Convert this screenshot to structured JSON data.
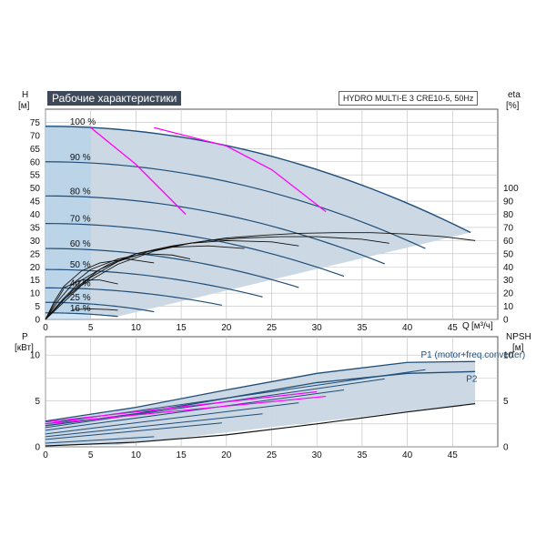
{
  "title": "Рабочие характеристики",
  "model": "HYDRO MULTI-E 3 CRE10-5, 50Hz",
  "colors": {
    "region": "#c9d7e3",
    "band": "#aecfe9",
    "curve": "#1f4e79",
    "efficiency": "#ff00ff",
    "system": "#111111",
    "grid": "#bfbfbf"
  },
  "chart_data": [
    {
      "type": "line",
      "name": "performance",
      "ylabel_left": "H",
      "yunit_left": "[м]",
      "ylabel_right": "eta",
      "yunit_right": "[%]",
      "xlabel": "Q",
      "xunit": "[м³/ч]",
      "xlim": [
        0,
        50
      ],
      "ylim": [
        0,
        80
      ],
      "xticks": [
        0,
        5,
        10,
        15,
        20,
        25,
        30,
        35,
        40,
        45
      ],
      "yticks": [
        0,
        5,
        10,
        15,
        20,
        25,
        30,
        35,
        40,
        45,
        50,
        55,
        60,
        65,
        70,
        75
      ],
      "eta_ticks": [
        0,
        10,
        20,
        30,
        40,
        50,
        60,
        70,
        80,
        90,
        100
      ],
      "speed_labels": [
        "100 %",
        "90 %",
        "80 %",
        "70 %",
        "60 %",
        "50 %",
        "40 %",
        "25 %",
        "16 %"
      ],
      "speed_curves": [
        {
          "speed": 1.0,
          "h0": 73.5,
          "qmax": 47
        },
        {
          "speed": 0.9,
          "h0": 60.0,
          "qmax": 42
        },
        {
          "speed": 0.8,
          "h0": 47.0,
          "qmax": 37.5
        },
        {
          "speed": 0.7,
          "h0": 36.5,
          "qmax": 33
        },
        {
          "speed": 0.6,
          "h0": 27.0,
          "qmax": 28
        },
        {
          "speed": 0.5,
          "h0": 19.0,
          "qmax": 24
        },
        {
          "speed": 0.4,
          "h0": 12.0,
          "qmax": 19.5
        },
        {
          "speed": 0.25,
          "h0": 6.5,
          "qmax": 12
        },
        {
          "speed": 0.16,
          "h0": 2.5,
          "qmax": 8
        }
      ],
      "efficiency_curves": [
        {
          "x": [
            5,
            10,
            15.5
          ],
          "y": [
            73,
            59,
            40
          ]
        },
        {
          "x": [
            12,
            20,
            25,
            31
          ],
          "y": [
            73,
            66,
            57,
            41
          ]
        }
      ],
      "eta_curves": [
        {
          "x": [
            0,
            4,
            8,
            12,
            16,
            20,
            24,
            28,
            32,
            36,
            40,
            44,
            47.5
          ],
          "y": [
            0,
            26,
            42,
            52,
            58,
            62,
            64,
            65.5,
            66,
            66,
            65,
            63,
            60
          ]
        },
        {
          "x": [
            0,
            3,
            6,
            10,
            14,
            18,
            22,
            26,
            30,
            35,
            38
          ],
          "y": [
            0,
            22,
            38,
            50,
            56,
            60,
            62,
            63,
            63,
            61,
            58
          ]
        },
        {
          "x": [
            0,
            2,
            5,
            8,
            12,
            16,
            20,
            25,
            28
          ],
          "y": [
            0,
            15,
            32,
            44,
            53,
            58,
            60,
            59,
            56
          ]
        },
        {
          "x": [
            0,
            2,
            4,
            7,
            10,
            14,
            18,
            22
          ],
          "y": [
            0,
            16,
            30,
            42,
            50,
            55,
            56,
            54
          ]
        },
        {
          "x": [
            0,
            1.5,
            3,
            5,
            8,
            11,
            14,
            16
          ],
          "y": [
            0,
            15,
            27,
            38,
            46,
            50,
            49,
            46
          ]
        },
        {
          "x": [
            0,
            1,
            2,
            4,
            6,
            9,
            12
          ],
          "y": [
            0,
            14,
            25,
            37,
            43,
            46,
            43
          ]
        },
        {
          "x": [
            2,
            4,
            6,
            8
          ],
          "y": [
            24,
            30,
            30,
            27
          ]
        },
        {
          "x": [
            3,
            5,
            7,
            8
          ],
          "y": [
            7.5,
            8,
            7.5,
            7
          ]
        },
        {
          "x": [
            0,
            1,
            2
          ],
          "y": [
            0,
            12,
            23
          ]
        }
      ]
    },
    {
      "type": "line",
      "name": "power",
      "ylabel_left": "P",
      "yunit_left": "[кВт]",
      "ylabel_right": "NPSH",
      "yunit_right": "[м]",
      "xlim": [
        0,
        50
      ],
      "ylim": [
        0,
        12
      ],
      "yticks_left": [
        0,
        5,
        10
      ],
      "yticks_right": [
        0,
        5,
        10
      ],
      "series": [
        {
          "name": "P1 (motor+freq.converter)",
          "x": [
            0,
            10,
            20,
            30,
            40,
            47.5
          ],
          "y": [
            2.8,
            4.3,
            6.2,
            8.0,
            9.2,
            9.3
          ]
        },
        {
          "name": "P2",
          "x": [
            0,
            10,
            20,
            30,
            40,
            47.5
          ],
          "y": [
            2.3,
            3.6,
            5.3,
            7.0,
            8.0,
            8.2
          ]
        }
      ],
      "power_curves": [
        {
          "x": [
            0,
            42
          ],
          "y": [
            2.5,
            8.4
          ]
        },
        {
          "x": [
            0,
            37.5
          ],
          "y": [
            2.1,
            7.4
          ]
        },
        {
          "x": [
            0,
            33
          ],
          "y": [
            1.8,
            6.2
          ]
        },
        {
          "x": [
            0,
            28
          ],
          "y": [
            1.4,
            4.8
          ]
        },
        {
          "x": [
            0,
            24
          ],
          "y": [
            1.1,
            3.6
          ]
        },
        {
          "x": [
            0,
            19.5
          ],
          "y": [
            0.8,
            2.6
          ]
        },
        {
          "x": [
            0,
            12
          ],
          "y": [
            0.4,
            1.1
          ]
        }
      ],
      "npsh": {
        "x": [
          0,
          10,
          20,
          30,
          40,
          47.5
        ],
        "y": [
          0.1,
          0.5,
          1.3,
          2.5,
          3.8,
          4.7
        ]
      }
    }
  ]
}
